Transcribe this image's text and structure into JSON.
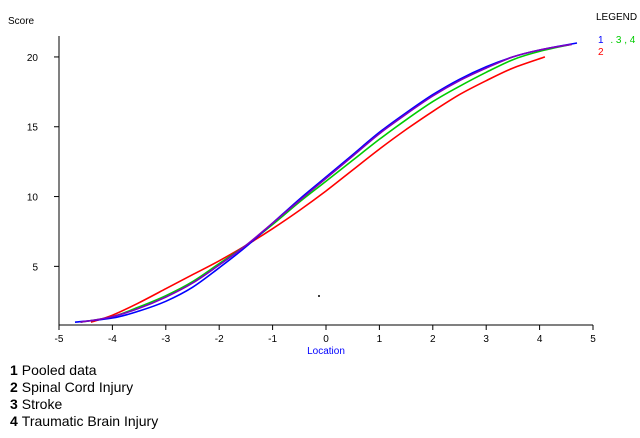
{
  "chart_data": {
    "type": "line",
    "ylabel": "Score",
    "xlabel": "Location",
    "legend_title": "LEGEND",
    "legend_line1": ". 3 , 4",
    "legend_line1_first": "1",
    "legend_line2": "2",
    "xlim": [
      -5,
      5
    ],
    "ylim": [
      0.8,
      21.5
    ],
    "xticks": [
      "-5",
      "-4",
      "-3",
      "-2",
      "-1",
      "0",
      "1",
      "2",
      "3",
      "4",
      "5"
    ],
    "yticks": [
      "5",
      "10",
      "15",
      "20"
    ],
    "ytick_values": [
      5,
      10,
      15,
      20
    ],
    "grid": false,
    "legend_position": "top-right",
    "series": [
      {
        "name": "1",
        "color": "#0000ff",
        "x": [
          -4.7,
          -4.0,
          -3.5,
          -3.0,
          -2.5,
          -2.0,
          -1.5,
          -1.0,
          -0.5,
          0.0,
          0.5,
          1.0,
          1.5,
          2.0,
          2.5,
          3.0,
          3.5,
          4.0,
          4.7
        ],
        "y": [
          1.0,
          1.3,
          1.8,
          2.5,
          3.5,
          4.9,
          6.4,
          8.1,
          9.8,
          11.4,
          13.0,
          14.6,
          16.0,
          17.3,
          18.4,
          19.3,
          20.0,
          20.5,
          21.0
        ]
      },
      {
        "name": "2",
        "color": "#ff0000",
        "x": [
          -4.4,
          -4.0,
          -3.5,
          -3.0,
          -2.5,
          -2.0,
          -1.5,
          -1.0,
          -0.5,
          0.0,
          0.5,
          1.0,
          1.5,
          2.0,
          2.5,
          3.0,
          3.5,
          4.1
        ],
        "y": [
          1.0,
          1.5,
          2.4,
          3.4,
          4.4,
          5.4,
          6.5,
          7.7,
          9.0,
          10.4,
          11.9,
          13.4,
          14.8,
          16.1,
          17.3,
          18.3,
          19.2,
          20.0
        ]
      },
      {
        "name": "3",
        "color": "#00cc00",
        "x": [
          -4.6,
          -4.0,
          -3.5,
          -3.0,
          -2.5,
          -2.0,
          -1.5,
          -1.0,
          -0.5,
          0.0,
          0.5,
          1.0,
          1.5,
          2.0,
          2.5,
          3.0,
          3.5,
          4.0,
          4.6
        ],
        "y": [
          1.0,
          1.4,
          2.1,
          2.9,
          3.9,
          5.2,
          6.5,
          8.0,
          9.6,
          11.1,
          12.6,
          14.1,
          15.5,
          16.8,
          17.9,
          18.9,
          19.8,
          20.4,
          20.9
        ]
      },
      {
        "name": "4",
        "color": "#8000c0",
        "x": [
          -4.6,
          -4.0,
          -3.5,
          -3.0,
          -2.5,
          -2.0,
          -1.5,
          -1.0,
          -0.5,
          0.0,
          0.5,
          1.0,
          1.5,
          2.0,
          2.5,
          3.0,
          3.5,
          4.0,
          4.6
        ],
        "y": [
          1.0,
          1.4,
          2.0,
          2.8,
          3.8,
          5.1,
          6.5,
          8.1,
          9.7,
          11.3,
          12.9,
          14.5,
          15.9,
          17.2,
          18.3,
          19.2,
          20.0,
          20.5,
          20.9
        ]
      }
    ]
  },
  "captions": [
    {
      "num": "1",
      "text": "Pooled data"
    },
    {
      "num": "2",
      "text": "Spinal Cord Injury"
    },
    {
      "num": "3",
      "text": "Stroke"
    },
    {
      "num": "4",
      "text": "Traumatic Brain Injury"
    }
  ],
  "colors": {
    "axis": "#000000",
    "xlabel": "#0000ff",
    "legend_green": "#00cc00",
    "legend_blue": "#0000ff",
    "legend_purple": "#8000c0",
    "legend_red": "#ff0000"
  }
}
